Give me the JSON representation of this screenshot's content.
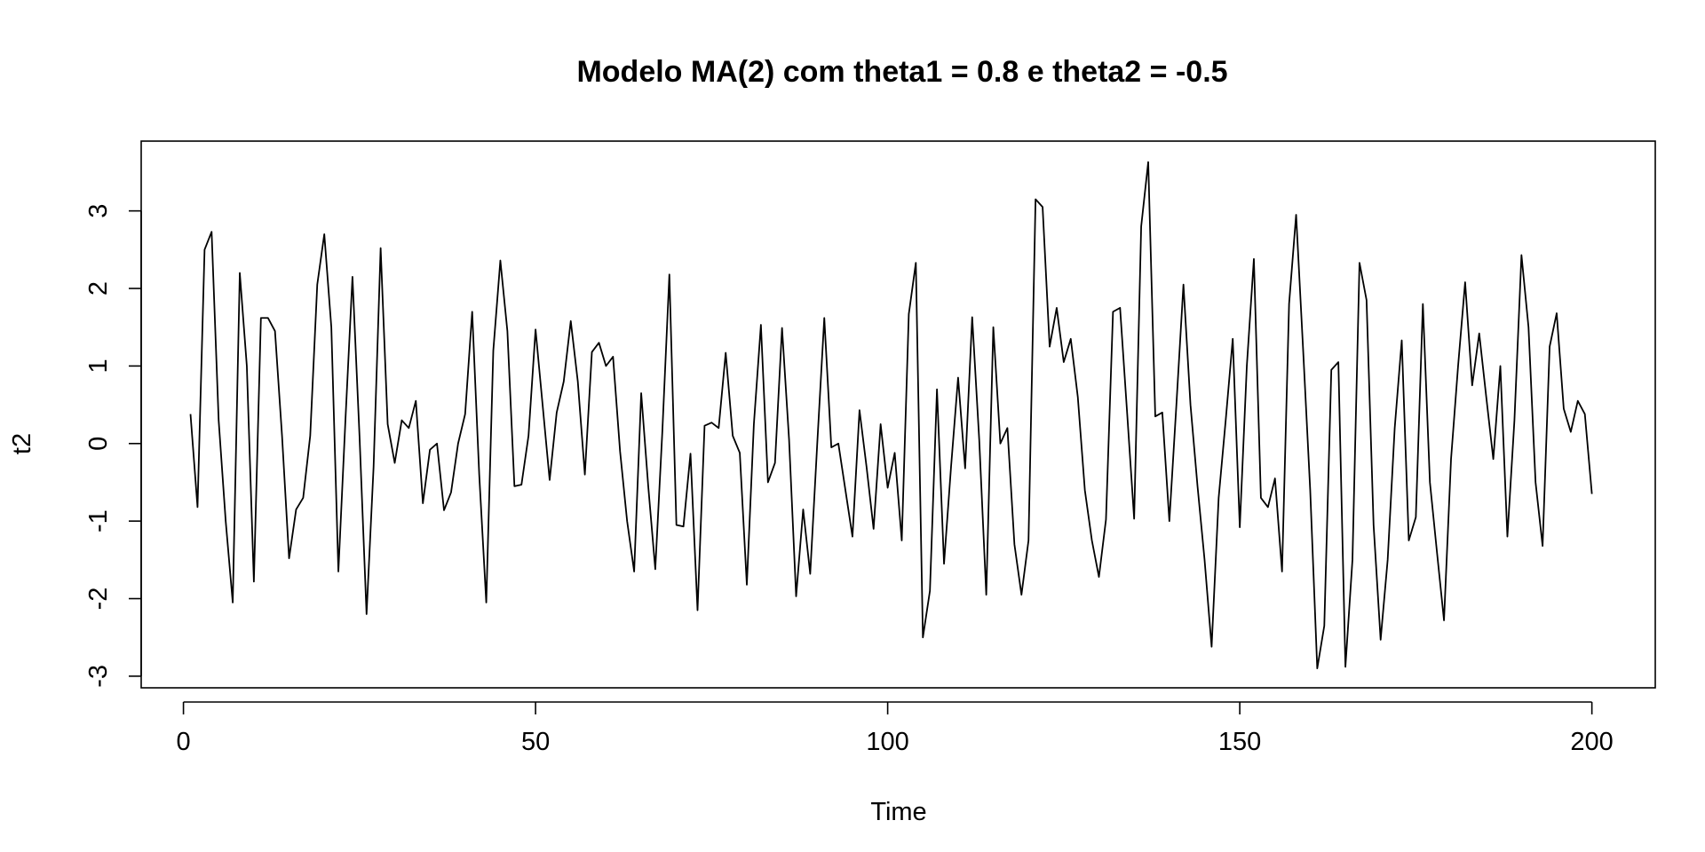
{
  "chart_data": {
    "type": "line",
    "title": "Modelo MA(2) com theta1 = 0.8 e theta2 = -0.5",
    "xlabel": "Time",
    "ylabel": "t2",
    "xlim": [
      -6,
      209
    ],
    "ylim": [
      -3.15,
      3.9
    ],
    "x_ticks": [
      0,
      50,
      100,
      150,
      200
    ],
    "y_ticks": [
      -3,
      -2,
      -1,
      0,
      1,
      2,
      3
    ],
    "grid": false,
    "legend": "none",
    "x_start": 1,
    "x_step": 1,
    "series": [
      {
        "color": "#000000",
        "values": [
          0.38,
          -0.82,
          2.5,
          2.73,
          0.3,
          -1.0,
          -2.05,
          2.2,
          1.0,
          -1.78,
          1.62,
          1.62,
          1.45,
          0.1,
          -1.48,
          -0.85,
          -0.7,
          0.1,
          2.05,
          2.7,
          1.5,
          -1.65,
          0.3,
          2.15,
          0.1,
          -2.2,
          -0.3,
          2.52,
          0.25,
          -0.25,
          0.3,
          0.2,
          0.55,
          -0.77,
          -0.08,
          0.0,
          -0.86,
          -0.63,
          0.0,
          0.38,
          1.7,
          -0.4,
          -2.05,
          1.2,
          2.36,
          1.45,
          -0.55,
          -0.53,
          0.1,
          1.47,
          0.5,
          -0.47,
          0.4,
          0.8,
          1.58,
          0.8,
          -0.4,
          1.18,
          1.3,
          1.0,
          1.12,
          -0.1,
          -1.0,
          -1.65,
          0.65,
          -0.55,
          -1.62,
          0.15,
          2.18,
          -1.05,
          -1.07,
          -0.13,
          -2.15,
          0.23,
          0.27,
          0.2,
          1.17,
          0.1,
          -0.12,
          -1.82,
          0.25,
          1.53,
          -0.5,
          -0.25,
          1.49,
          0.05,
          -1.97,
          -0.85,
          -1.68,
          0.0,
          1.62,
          -0.05,
          0.0,
          -0.6,
          -1.2,
          0.43,
          -0.3,
          -1.1,
          0.25,
          -0.57,
          -0.12,
          -1.25,
          1.67,
          2.33,
          -2.5,
          -1.9,
          0.7,
          -1.55,
          -0.3,
          0.85,
          -0.32,
          1.63,
          0.05,
          -1.95,
          1.5,
          0.0,
          0.2,
          -1.3,
          -1.95,
          -1.25,
          3.15,
          3.05,
          1.25,
          1.75,
          1.05,
          1.35,
          0.6,
          -0.6,
          -1.25,
          -1.72,
          -0.98,
          1.7,
          1.75,
          0.4,
          -0.97,
          2.8,
          3.63,
          0.35,
          0.4,
          -1.0,
          0.5,
          2.05,
          0.5,
          -0.55,
          -1.5,
          -2.62,
          -0.7,
          0.3,
          1.35,
          -1.08,
          1.0,
          2.38,
          -0.7,
          -0.82,
          -0.45,
          -1.65,
          1.8,
          2.95,
          1.2,
          -0.6,
          -2.9,
          -2.35,
          0.95,
          1.05,
          -2.88,
          -1.5,
          2.33,
          1.85,
          -1.05,
          -2.53,
          -1.5,
          0.2,
          1.33,
          -1.25,
          -0.95,
          1.8,
          -0.5,
          -1.4,
          -2.28,
          -0.2,
          1.0,
          2.08,
          0.75,
          1.42,
          0.6,
          -0.2,
          1.0,
          -1.2,
          0.3,
          2.43,
          1.5,
          -0.5,
          -1.32,
          1.25,
          1.68,
          0.45,
          0.15,
          0.55,
          0.38,
          -0.65
        ]
      }
    ]
  }
}
